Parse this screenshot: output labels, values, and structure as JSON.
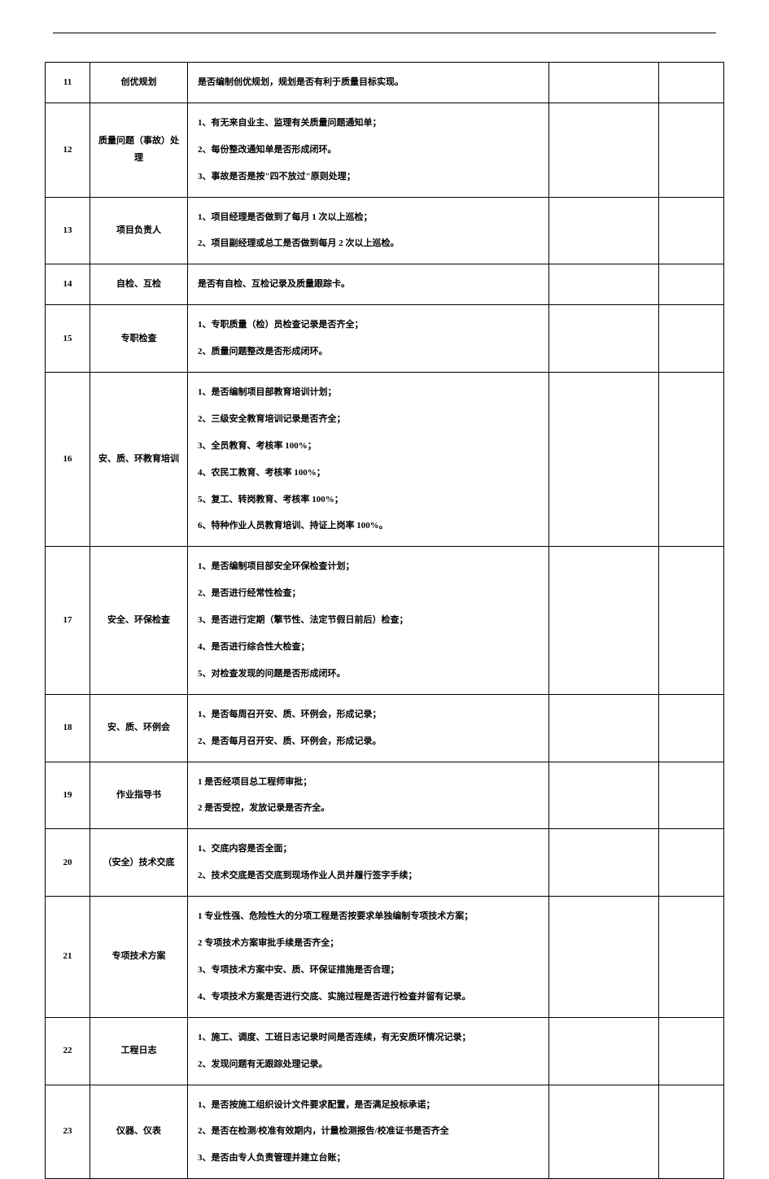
{
  "rows": [
    {
      "num": "11",
      "title": "创优规划",
      "lines": [
        "是否编制创优规划，规划是否有利于质量目标实现。"
      ]
    },
    {
      "num": "12",
      "title": "质量问题（事故）处理",
      "lines": [
        "1、有无来自业主、监理有关质量问题通知单；",
        "2、每份整改通知单是否形成闭环。",
        "3、事故是否是按\"四不放过\"原则处理；"
      ]
    },
    {
      "num": "13",
      "title": "项目负责人",
      "lines": [
        "1、项目经理是否做到了每月 1 次以上巡检；",
        "2、项目副经理或总工是否做到每月 2 次以上巡检。"
      ]
    },
    {
      "num": "14",
      "title": "自检、互检",
      "lines": [
        "是否有自检、互检记录及质量跟踪卡。"
      ]
    },
    {
      "num": "15",
      "title": "专职检查",
      "lines": [
        "1、专职质量（检）员检查记录是否齐全；",
        "2、质量问题整改是否形成闭环。"
      ]
    },
    {
      "num": "16",
      "title": "安、质、环教育培训",
      "lines": [
        "1、是否编制项目部教育培训计划；",
        "2、三级安全教育培训记录是否齐全；",
        "3、全员教育、考核率 100%；",
        "4、农民工教育、考核率 100%；",
        "5、复工、转岗教育、考核率 100%；",
        "6、特种作业人员教育培训、持证上岗率 100%。"
      ]
    },
    {
      "num": "17",
      "title": "安全、环保检查",
      "lines": [
        "1、是否编制项目部安全环保检查计划；",
        "2、是否进行经常性检查；",
        "3、是否进行定期（擎节性、法定节假日前后）检查；",
        "4、是否进行综合性大检查；",
        "5、对检查发现的问题是否形成闭环。"
      ]
    },
    {
      "num": "18",
      "title": "安、质、环例会",
      "lines": [
        "1、是否每周召开安、质、环例会，形成记录；",
        "2、是否每月召开安、质、环例会，形成记录。"
      ]
    },
    {
      "num": "19",
      "title": "作业指导书",
      "lines": [
        "1 是否经项目总工程师审批；",
        "2 是否受控，发放记录是否齐全。"
      ]
    },
    {
      "num": "20",
      "title": "（安全）技术交底",
      "lines": [
        "1、交底内容是否全面；",
        "2、技术交底是否交底到现场作业人员并履行签字手续；"
      ]
    },
    {
      "num": "21",
      "title": "专项技术方案",
      "lines": [
        "1 专业性强、危险性大的分项工程是否按要求单独编制专项技术方案；",
        "2 专项技术方案审批手续是否齐全；",
        "3、专项技术方案中安、质、环保证措施是否合理；",
        "4、专项技术方案是否进行交底、实施过程是否进行检查并留有记录。"
      ]
    },
    {
      "num": "22",
      "title": "工程日志",
      "lines": [
        "1、施工、调度、工班日志记录时间是否连续，有无安质环情况记录；",
        "2、发现问题有无跟踪处理记录。"
      ]
    },
    {
      "num": "23",
      "title": "仪器、仪表",
      "lines": [
        "1、是否按施工组织设计文件要求配置，是否满足投标承诺；",
        "2、是否在检测/校准有效期内，计量检测报告/校准证书是否齐全",
        "3、是否由专人负责管理并建立台账；"
      ]
    }
  ]
}
